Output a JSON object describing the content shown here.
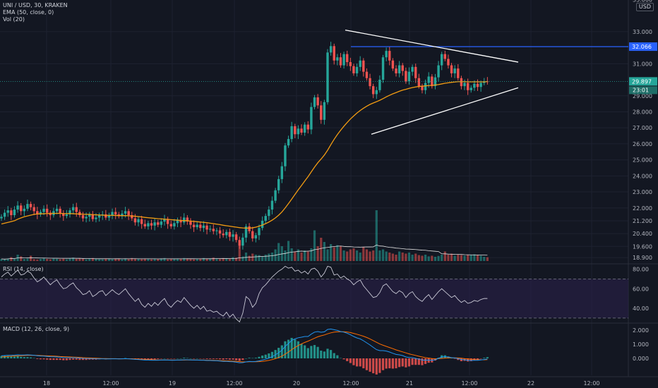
{
  "legend": {
    "symbol": "UNI / USD, 30, KRAKEN",
    "ema": "EMA (50, close, 0)",
    "vol": "Vol (20)",
    "rsi": "RSI (14, close)",
    "macd": "MACD (12, 26, close, 9)"
  },
  "currency": "USD",
  "colors": {
    "background": "#131722",
    "grid": "#1e2230",
    "up": "#26a69a",
    "down": "#ef5350",
    "ema": "#f39c12",
    "trendline": "#ffffff",
    "resistance": "#2962ff",
    "rsi": "#c9c9d6",
    "rsi_band": "#2a1f4a",
    "macd": "#2196f3",
    "signal": "#ff6d00"
  },
  "chart_data": [
    {
      "type": "candlestick",
      "panel": "price",
      "x_ticks": [
        "18",
        "12:00",
        "19",
        "12:00",
        "20",
        "12:00",
        "21",
        "12:00",
        "22",
        "12:00"
      ],
      "y_ticks": [
        "33.000",
        "31.000",
        "29.000",
        "28.000",
        "27.000",
        "26.000",
        "25.000",
        "24.000",
        "23.000",
        "22.000",
        "21.200",
        "20.400",
        "19.600",
        "18.900"
      ],
      "top_tick": "35.000",
      "ylim": [
        18.6,
        34.8
      ],
      "price_labels": {
        "resistance": "32.066",
        "last": "29.897",
        "countdown": "23:01"
      },
      "resistance": 32.066,
      "last_price": 29.897,
      "ema_name": "EMA 50",
      "volume_name": "Vol 20",
      "closes": [
        21.45,
        21.7,
        21.85,
        21.55,
        21.9,
        22.15,
        21.8,
        21.95,
        22.25,
        22.05,
        21.8,
        21.6,
        21.75,
        21.95,
        21.7,
        21.55,
        21.8,
        21.95,
        21.65,
        21.5,
        21.6,
        21.85,
        22.05,
        21.75,
        21.55,
        21.35,
        21.45,
        21.6,
        21.3,
        21.4,
        21.55,
        21.6,
        21.4,
        21.55,
        21.75,
        21.6,
        21.5,
        21.65,
        21.8,
        21.55,
        21.35,
        21.1,
        21.3,
        21.0,
        20.85,
        21.05,
        20.9,
        21.1,
        20.95,
        21.15,
        21.3,
        21.0,
        20.85,
        21.05,
        21.25,
        21.1,
        21.4,
        21.15,
        20.95,
        20.8,
        20.95,
        20.75,
        20.9,
        20.65,
        20.7,
        20.55,
        20.6,
        20.4,
        20.3,
        20.5,
        20.2,
        20.35,
        20.0,
        19.65,
        20.15,
        20.85,
        20.55,
        20.1,
        20.3,
        20.75,
        21.2,
        21.5,
        21.9,
        22.45,
        23.1,
        23.8,
        24.6,
        25.9,
        26.3,
        27.1,
        26.6,
        26.95,
        26.7,
        27.2,
        26.9,
        28.3,
        28.9,
        28.4,
        27.5,
        28.6,
        31.7,
        32.1,
        31.2,
        31.4,
        30.9,
        31.6,
        31.1,
        30.85,
        30.4,
        30.8,
        31.2,
        30.5,
        30.1,
        29.6,
        29.1,
        29.35,
        30.0,
        31.4,
        31.8,
        31.2,
        30.7,
        30.4,
        30.9,
        30.55,
        29.9,
        30.5,
        30.8,
        30.1,
        29.6,
        29.35,
        29.8,
        30.2,
        29.6,
        30.15,
        30.9,
        31.6,
        31.3,
        30.9,
        30.4,
        30.7,
        30.1,
        29.6,
        29.8,
        29.35,
        29.5,
        29.75,
        29.55,
        29.8,
        29.9,
        29.897
      ],
      "ema": [
        21.0,
        21.05,
        21.1,
        21.15,
        21.2,
        21.3,
        21.38,
        21.45,
        21.5,
        21.55,
        21.6,
        21.62,
        21.63,
        21.64,
        21.65,
        21.66,
        21.66,
        21.66,
        21.66,
        21.65,
        21.65,
        21.65,
        21.64,
        21.63,
        21.62,
        21.61,
        21.6,
        21.6,
        21.58,
        21.57,
        21.56,
        21.55,
        21.54,
        21.54,
        21.54,
        21.53,
        21.52,
        21.52,
        21.52,
        21.51,
        21.5,
        21.48,
        21.46,
        21.44,
        21.41,
        21.39,
        21.37,
        21.35,
        21.33,
        21.32,
        21.3,
        21.29,
        21.27,
        21.25,
        21.24,
        21.22,
        21.21,
        21.2,
        21.18,
        21.16,
        21.14,
        21.12,
        21.1,
        21.08,
        21.05,
        21.02,
        20.99,
        20.96,
        20.92,
        20.89,
        20.86,
        20.83,
        20.8,
        20.77,
        20.75,
        20.74,
        20.74,
        20.76,
        20.8,
        20.86,
        20.93,
        21.02,
        21.12,
        21.24,
        21.38,
        21.55,
        21.75,
        22.0,
        22.27,
        22.55,
        22.84,
        23.13,
        23.4,
        23.68,
        23.95,
        24.25,
        24.55,
        24.82,
        25.05,
        25.3,
        25.6,
        25.95,
        26.28,
        26.58,
        26.85,
        27.1,
        27.33,
        27.55,
        27.74,
        27.92,
        28.08,
        28.22,
        28.35,
        28.46,
        28.55,
        28.63,
        28.72,
        28.82,
        28.93,
        29.03,
        29.12,
        29.2,
        29.28,
        29.35,
        29.4,
        29.46,
        29.51,
        29.55,
        29.58,
        29.6,
        29.62,
        29.64,
        29.65,
        29.67,
        29.7,
        29.74,
        29.78,
        29.81,
        29.84,
        29.86,
        29.88,
        29.88,
        29.88,
        29.87,
        29.87,
        29.87,
        29.87,
        29.87,
        29.87,
        29.89
      ],
      "volumes": [
        0.1,
        0.08,
        0.12,
        0.18,
        0.1,
        0.3,
        0.22,
        0.1,
        0.12,
        0.25,
        0.09,
        0.07,
        0.1,
        0.14,
        0.1,
        0.08,
        0.12,
        0.1,
        0.09,
        0.11,
        0.08,
        0.12,
        0.16,
        0.1,
        0.12,
        0.1,
        0.08,
        0.12,
        0.14,
        0.1,
        0.09,
        0.08,
        0.12,
        0.1,
        0.09,
        0.1,
        0.12,
        0.08,
        0.1,
        0.09,
        0.14,
        0.12,
        0.1,
        0.09,
        0.12,
        0.1,
        0.08,
        0.1,
        0.09,
        0.12,
        0.14,
        0.08,
        0.1,
        0.09,
        0.12,
        0.1,
        0.14,
        0.12,
        0.1,
        0.08,
        0.1,
        0.12,
        0.14,
        0.1,
        0.12,
        0.16,
        0.12,
        0.1,
        0.14,
        0.12,
        0.1,
        0.18,
        0.16,
        0.75,
        0.22,
        0.4,
        0.25,
        0.35,
        0.3,
        0.28,
        0.22,
        0.3,
        0.35,
        0.4,
        0.55,
        0.85,
        0.7,
        0.5,
        0.95,
        0.6,
        0.45,
        0.55,
        0.4,
        0.5,
        0.45,
        0.6,
        1.45,
        0.7,
        1.1,
        0.9,
        0.55,
        0.8,
        0.65,
        0.75,
        0.7,
        0.5,
        0.45,
        0.55,
        0.6,
        0.5,
        0.4,
        0.65,
        0.55,
        0.45,
        0.5,
        2.4,
        0.5,
        0.55,
        0.45,
        0.4,
        0.35,
        0.3,
        0.45,
        0.4,
        0.35,
        0.4,
        0.3,
        0.35,
        0.28,
        0.25,
        0.3,
        0.22,
        0.25,
        0.2,
        0.24,
        0.3,
        0.45,
        0.3,
        0.35,
        0.25,
        0.3,
        0.28,
        0.25,
        0.3,
        0.28,
        0.32,
        0.3,
        0.25,
        0.2,
        0.18
      ],
      "triangle": {
        "upper": {
          "from": [
            "21 04:00",
            33.1
          ],
          "to": [
            "21 19:00",
            31.1
          ]
        },
        "lower": {
          "from": [
            "21 08:00",
            26.6
          ],
          "to": [
            "21 19:00",
            29.5
          ]
        }
      }
    },
    {
      "type": "line",
      "panel": "rsi",
      "name": "RSI (14, close)",
      "y_ticks": [
        "80.00",
        "60.00",
        "40.00"
      ],
      "ylim": [
        27,
        84
      ],
      "levels": [
        70,
        30
      ],
      "values": [
        72,
        75,
        77,
        73,
        76,
        79,
        74,
        75,
        78,
        76,
        71,
        67,
        69,
        72,
        68,
        64,
        67,
        69,
        64,
        60,
        61,
        64,
        66,
        61,
        58,
        54,
        55,
        58,
        52,
        54,
        57,
        58,
        53,
        56,
        59,
        56,
        54,
        57,
        60,
        55,
        51,
        47,
        50,
        44,
        41,
        45,
        42,
        46,
        43,
        47,
        50,
        44,
        41,
        45,
        48,
        46,
        51,
        47,
        43,
        40,
        43,
        39,
        42,
        37,
        38,
        36,
        37,
        34,
        32,
        36,
        31,
        34,
        29,
        26,
        35,
        52,
        49,
        41,
        45,
        55,
        61,
        64,
        68,
        72,
        75,
        78,
        80,
        83,
        81,
        82,
        78,
        79,
        76,
        78,
        75,
        80,
        81,
        78,
        72,
        76,
        83,
        82,
        74,
        75,
        71,
        73,
        70,
        68,
        64,
        67,
        69,
        63,
        59,
        55,
        51,
        52,
        56,
        63,
        65,
        61,
        57,
        55,
        58,
        56,
        51,
        55,
        57,
        52,
        49,
        47,
        51,
        54,
        49,
        53,
        57,
        60,
        57,
        54,
        51,
        53,
        49,
        46,
        48,
        45,
        46,
        48,
        47,
        49,
        50,
        50
      ]
    },
    {
      "type": "line",
      "panel": "macd",
      "name": "MACD (12, 26, close, 9)",
      "y_ticks": [
        "2.000",
        "1.000",
        "0.000"
      ],
      "ylim": [
        -1.2,
        2.4
      ],
      "series_names": [
        "MACD",
        "Signal",
        "Histogram"
      ],
      "macd": [
        0.18,
        0.2,
        0.22,
        0.22,
        0.23,
        0.25,
        0.24,
        0.24,
        0.25,
        0.24,
        0.22,
        0.19,
        0.17,
        0.16,
        0.14,
        0.12,
        0.11,
        0.1,
        0.08,
        0.06,
        0.05,
        0.05,
        0.05,
        0.04,
        0.02,
        0,
        -0.01,
        -0.01,
        -0.02,
        -0.03,
        -0.03,
        -0.03,
        -0.04,
        -0.04,
        -0.03,
        -0.03,
        -0.04,
        -0.03,
        -0.02,
        -0.03,
        -0.05,
        -0.07,
        -0.08,
        -0.1,
        -0.12,
        -0.12,
        -0.13,
        -0.13,
        -0.13,
        -0.12,
        -0.11,
        -0.12,
        -0.13,
        -0.13,
        -0.12,
        -0.12,
        -0.1,
        -0.1,
        -0.11,
        -0.12,
        -0.12,
        -0.13,
        -0.13,
        -0.15,
        -0.15,
        -0.16,
        -0.17,
        -0.19,
        -0.21,
        -0.21,
        -0.23,
        -0.24,
        -0.27,
        -0.31,
        -0.3,
        -0.25,
        -0.22,
        -0.23,
        -0.22,
        -0.18,
        -0.12,
        -0.06,
        0.02,
        0.12,
        0.25,
        0.4,
        0.58,
        0.85,
        1.05,
        1.28,
        1.38,
        1.46,
        1.5,
        1.55,
        1.55,
        1.72,
        1.86,
        1.9,
        1.85,
        1.88,
        2.05,
        2.08,
        2.03,
        1.98,
        1.9,
        1.86,
        1.78,
        1.68,
        1.55,
        1.45,
        1.38,
        1.25,
        1.1,
        0.95,
        0.78,
        0.62,
        0.55,
        0.55,
        0.52,
        0.45,
        0.36,
        0.28,
        0.25,
        0.2,
        0.1,
        0.06,
        0.05,
        0.0,
        -0.06,
        -0.12,
        -0.13,
        -0.12,
        -0.14,
        -0.1,
        0.0,
        0.1,
        0.12,
        0.1,
        0.05,
        0.03,
        -0.02,
        -0.08,
        -0.1,
        -0.14,
        -0.15,
        -0.14,
        -0.14,
        -0.11,
        -0.08,
        -0.05
      ],
      "signal": [
        0.1,
        0.12,
        0.14,
        0.15,
        0.17,
        0.18,
        0.19,
        0.2,
        0.21,
        0.21,
        0.21,
        0.21,
        0.2,
        0.19,
        0.18,
        0.17,
        0.16,
        0.15,
        0.13,
        0.12,
        0.11,
        0.1,
        0.09,
        0.08,
        0.07,
        0.05,
        0.04,
        0.03,
        0.02,
        0.01,
        0,
        -0.01,
        -0.01,
        -0.02,
        -0.02,
        -0.02,
        -0.03,
        -0.03,
        -0.03,
        -0.03,
        -0.03,
        -0.04,
        -0.05,
        -0.06,
        -0.07,
        -0.08,
        -0.09,
        -0.1,
        -0.11,
        -0.11,
        -0.11,
        -0.11,
        -0.12,
        -0.12,
        -0.12,
        -0.12,
        -0.12,
        -0.11,
        -0.11,
        -0.11,
        -0.12,
        -0.12,
        -0.12,
        -0.13,
        -0.13,
        -0.14,
        -0.15,
        -0.16,
        -0.17,
        -0.18,
        -0.19,
        -0.2,
        -0.21,
        -0.23,
        -0.25,
        -0.25,
        -0.24,
        -0.24,
        -0.24,
        -0.23,
        -0.21,
        -0.18,
        -0.14,
        -0.09,
        -0.02,
        0.06,
        0.16,
        0.3,
        0.45,
        0.62,
        0.77,
        0.91,
        1.03,
        1.13,
        1.22,
        1.32,
        1.43,
        1.53,
        1.6,
        1.66,
        1.74,
        1.81,
        1.86,
        1.88,
        1.89,
        1.89,
        1.87,
        1.83,
        1.77,
        1.71,
        1.64,
        1.57,
        1.48,
        1.38,
        1.26,
        1.14,
        1.02,
        0.93,
        0.85,
        0.77,
        0.69,
        0.6,
        0.53,
        0.46,
        0.39,
        0.32,
        0.26,
        0.21,
        0.15,
        0.1,
        0.05,
        0.02,
        -0.01,
        -0.03,
        -0.02,
        0.0,
        0.02,
        0.04,
        0.04,
        0.04,
        0.03,
        0.01,
        -0.02,
        -0.04,
        -0.06,
        -0.08,
        -0.09,
        -0.1,
        -0.1,
        -0.09
      ]
    }
  ]
}
